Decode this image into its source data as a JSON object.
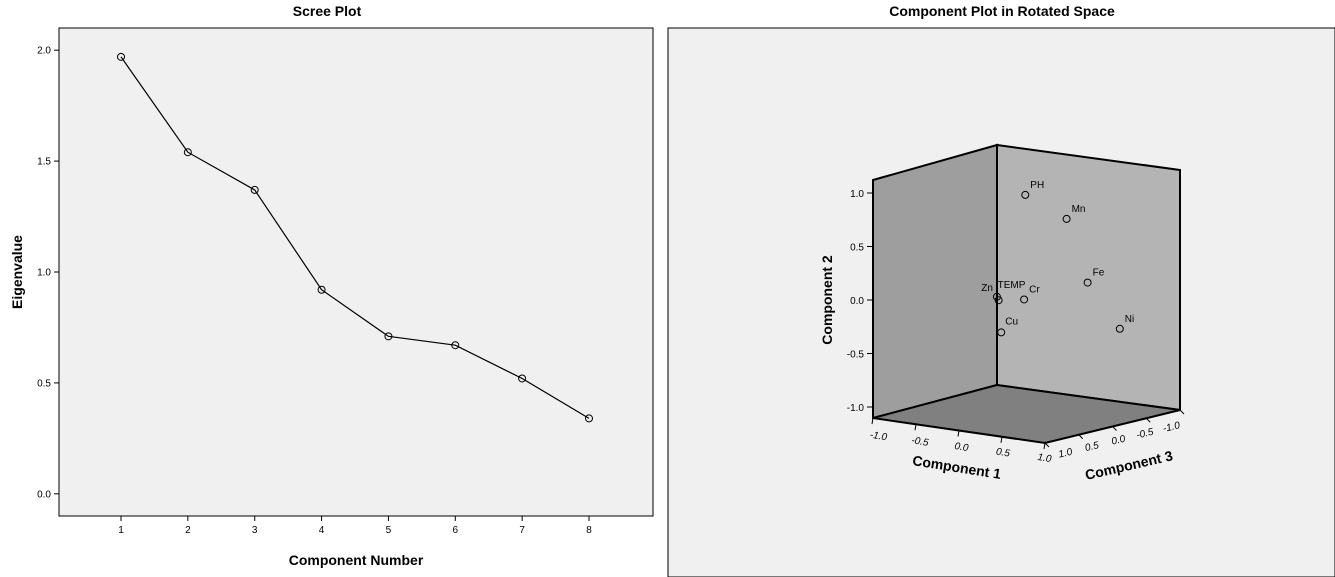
{
  "chart_data": [
    {
      "type": "line",
      "title": "Scree Plot",
      "xlabel": "Component Number",
      "ylabel": "Eigenvalue",
      "x": [
        1,
        2,
        3,
        4,
        5,
        6,
        7,
        8
      ],
      "x_tick_labels": [
        "1",
        "2",
        "3",
        "4",
        "5",
        "6",
        "7",
        "8"
      ],
      "values": [
        1.97,
        1.54,
        1.37,
        0.92,
        0.71,
        0.67,
        0.52,
        0.34
      ],
      "ylim": [
        -0.1,
        2.1
      ],
      "y_ticks": [
        0.0,
        0.5,
        1.0,
        1.5,
        2.0
      ],
      "y_tick_labels": [
        "0.0",
        "0.5",
        "1.0",
        "1.5",
        "2.0"
      ],
      "marker": "circle",
      "grid": false,
      "colors": {
        "plot_bg": "#f0f0f0",
        "line": "#000000"
      }
    },
    {
      "type": "scatter",
      "title": "Component Plot in Rotated Space",
      "xlabel": "Component 1",
      "ylabel": "Component 2",
      "zlabel": "Component 3",
      "axis_tick_labels": {
        "component_1": [
          "-1.0",
          "-0.5",
          "0.0",
          "0.5",
          "1.0"
        ],
        "component_2": [
          "1.0",
          "0.5",
          "0.0",
          "-0.5",
          "-1.0"
        ],
        "component_3": [
          "1.0",
          "0.5",
          "0.0",
          "-0.5",
          "-1.0"
        ]
      },
      "points": [
        {
          "label": "PH",
          "c1": 0.05,
          "c2": 0.95,
          "c3": 0.0
        },
        {
          "label": "Mn",
          "c1": 0.35,
          "c2": 0.72,
          "c3": 0.25
        },
        {
          "label": "Fe",
          "c1": 0.45,
          "c2": 0.1,
          "c3": 0.45
        },
        {
          "label": "Ni",
          "c1": 0.5,
          "c2": -0.4,
          "c3": 0.9
        },
        {
          "label": "Zn",
          "c1": -0.28,
          "c2": -0.05,
          "c3": 0.0
        },
        {
          "label": "TEMP",
          "c1": -0.26,
          "c2": -0.08,
          "c3": 0.0
        },
        {
          "label": "Cr",
          "c1": 0.0,
          "c2": -0.05,
          "c3": 0.05
        },
        {
          "label": "Cu",
          "c1": -0.23,
          "c2": -0.38,
          "c3": 0.0
        }
      ],
      "grid": false,
      "colors": {
        "panel_bg": "#f0f0f0",
        "back_wall": "#b4b4b4",
        "left_wall": "#9e9e9e",
        "floor": "#808080"
      }
    }
  ]
}
